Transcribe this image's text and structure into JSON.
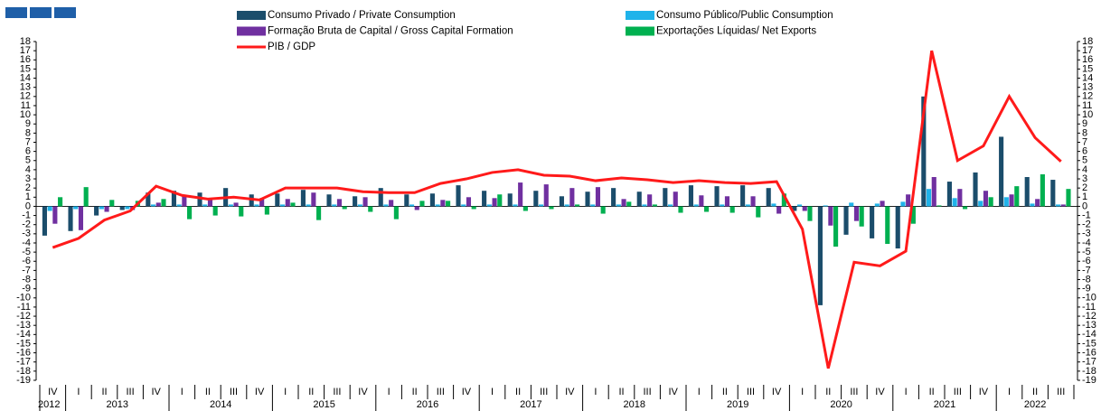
{
  "chart_data": {
    "type": "bar",
    "categories": [
      "IV",
      "I",
      "II",
      "III",
      "IV",
      "I",
      "II",
      "III",
      "IV",
      "I",
      "II",
      "III",
      "IV",
      "I",
      "II",
      "III",
      "IV",
      "I",
      "II",
      "III",
      "IV",
      "I",
      "II",
      "III",
      "IV",
      "I",
      "II",
      "III",
      "IV",
      "I",
      "II",
      "III",
      "IV",
      "I",
      "II",
      "III",
      "IV",
      "I",
      "II",
      "III"
    ],
    "years": [
      "2012",
      "2013",
      "2014",
      "2015",
      "2016",
      "2017",
      "2018",
      "2019",
      "2020",
      "2021",
      "2022"
    ],
    "series": [
      {
        "name": "Consumo Privado / Private Consumption",
        "type": "bar",
        "color": "#1b4d6b",
        "values": [
          -3.2,
          -2.7,
          -1.0,
          -0.4,
          1.5,
          1.7,
          1.5,
          2.0,
          1.3,
          1.4,
          1.8,
          1.3,
          1.1,
          2.0,
          1.3,
          1.4,
          2.3,
          1.7,
          1.4,
          1.7,
          1.1,
          1.6,
          2.0,
          1.6,
          2.0,
          2.3,
          2.2,
          2.3,
          2.0,
          -0.5,
          -10.8,
          -3.1,
          -3.5,
          -4.6,
          12.0,
          2.7,
          3.7,
          7.6,
          3.2,
          2.9
        ]
      },
      {
        "name": "Consumo Público/Public Consumption",
        "type": "bar",
        "color": "#1fb3ea",
        "values": [
          -0.5,
          -0.3,
          -0.3,
          -0.3,
          0.2,
          0.2,
          0.2,
          0.2,
          0.2,
          0.2,
          0.2,
          0.2,
          0.2,
          0.2,
          0.2,
          0.2,
          0.2,
          0.2,
          0.2,
          0.2,
          0.2,
          0.2,
          0.2,
          0.2,
          0.2,
          0.2,
          0.2,
          0.2,
          0.3,
          0.2,
          0.1,
          0.4,
          0.3,
          0.5,
          1.9,
          0.9,
          0.6,
          1.0,
          0.3,
          0.2
        ]
      },
      {
        "name": "Formação Bruta de Capital / Gross Capital Formation",
        "type": "bar",
        "color": "#7030a0",
        "values": [
          -1.9,
          -2.6,
          -0.6,
          -0.4,
          0.4,
          1.1,
          0.7,
          0.4,
          0.9,
          0.8,
          1.5,
          0.8,
          1.0,
          0.7,
          -0.4,
          0.7,
          1.0,
          0.9,
          2.6,
          2.4,
          2.0,
          2.1,
          0.8,
          1.3,
          1.6,
          1.2,
          1.1,
          1.1,
          -0.8,
          -0.5,
          -2.1,
          -1.6,
          0.6,
          1.3,
          3.2,
          1.9,
          1.7,
          1.3,
          0.8,
          0.2
        ]
      },
      {
        "name": "Exportações Líquidas/ Net Exports",
        "type": "bar",
        "color": "#00b050",
        "values": [
          1.0,
          2.1,
          0.7,
          0.6,
          0.8,
          -1.4,
          -1.0,
          -1.1,
          -0.9,
          0.4,
          -1.5,
          -0.3,
          -0.6,
          -1.4,
          0.6,
          0.6,
          -0.3,
          1.3,
          -0.5,
          -0.3,
          0.2,
          -0.8,
          0.5,
          0.2,
          -0.7,
          -0.6,
          -0.7,
          -1.2,
          1.4,
          -1.6,
          -4.4,
          -2.2,
          -4.1,
          -1.9,
          0.1,
          -0.3,
          1.0,
          2.2,
          3.5,
          1.9
        ]
      },
      {
        "name": "PIB / GDP",
        "type": "line",
        "color": "#ff1a1a",
        "values": [
          -4.5,
          -3.5,
          -1.5,
          -0.5,
          2.2,
          1.2,
          0.8,
          1.0,
          0.7,
          2.0,
          2.0,
          2.0,
          1.6,
          1.5,
          1.5,
          2.5,
          3.0,
          3.7,
          4.0,
          3.4,
          3.3,
          2.8,
          3.1,
          2.9,
          2.6,
          2.8,
          2.6,
          2.5,
          2.7,
          -2.5,
          -17.7,
          -6.1,
          -6.5,
          -4.9,
          17.0,
          5.0,
          6.6,
          12.0,
          7.5,
          4.9
        ]
      }
    ],
    "ylim": [
      -19,
      18
    ],
    "yticks": [
      -19,
      -18,
      -17,
      -16,
      -15,
      -14,
      -13,
      -12,
      -11,
      -10,
      -9,
      -8,
      -7,
      -6,
      -5,
      -4,
      -3,
      -2,
      -1,
      0,
      1,
      2,
      3,
      4,
      5,
      6,
      7,
      8,
      9,
      10,
      11,
      12,
      13,
      14,
      15,
      16,
      17,
      18
    ]
  }
}
